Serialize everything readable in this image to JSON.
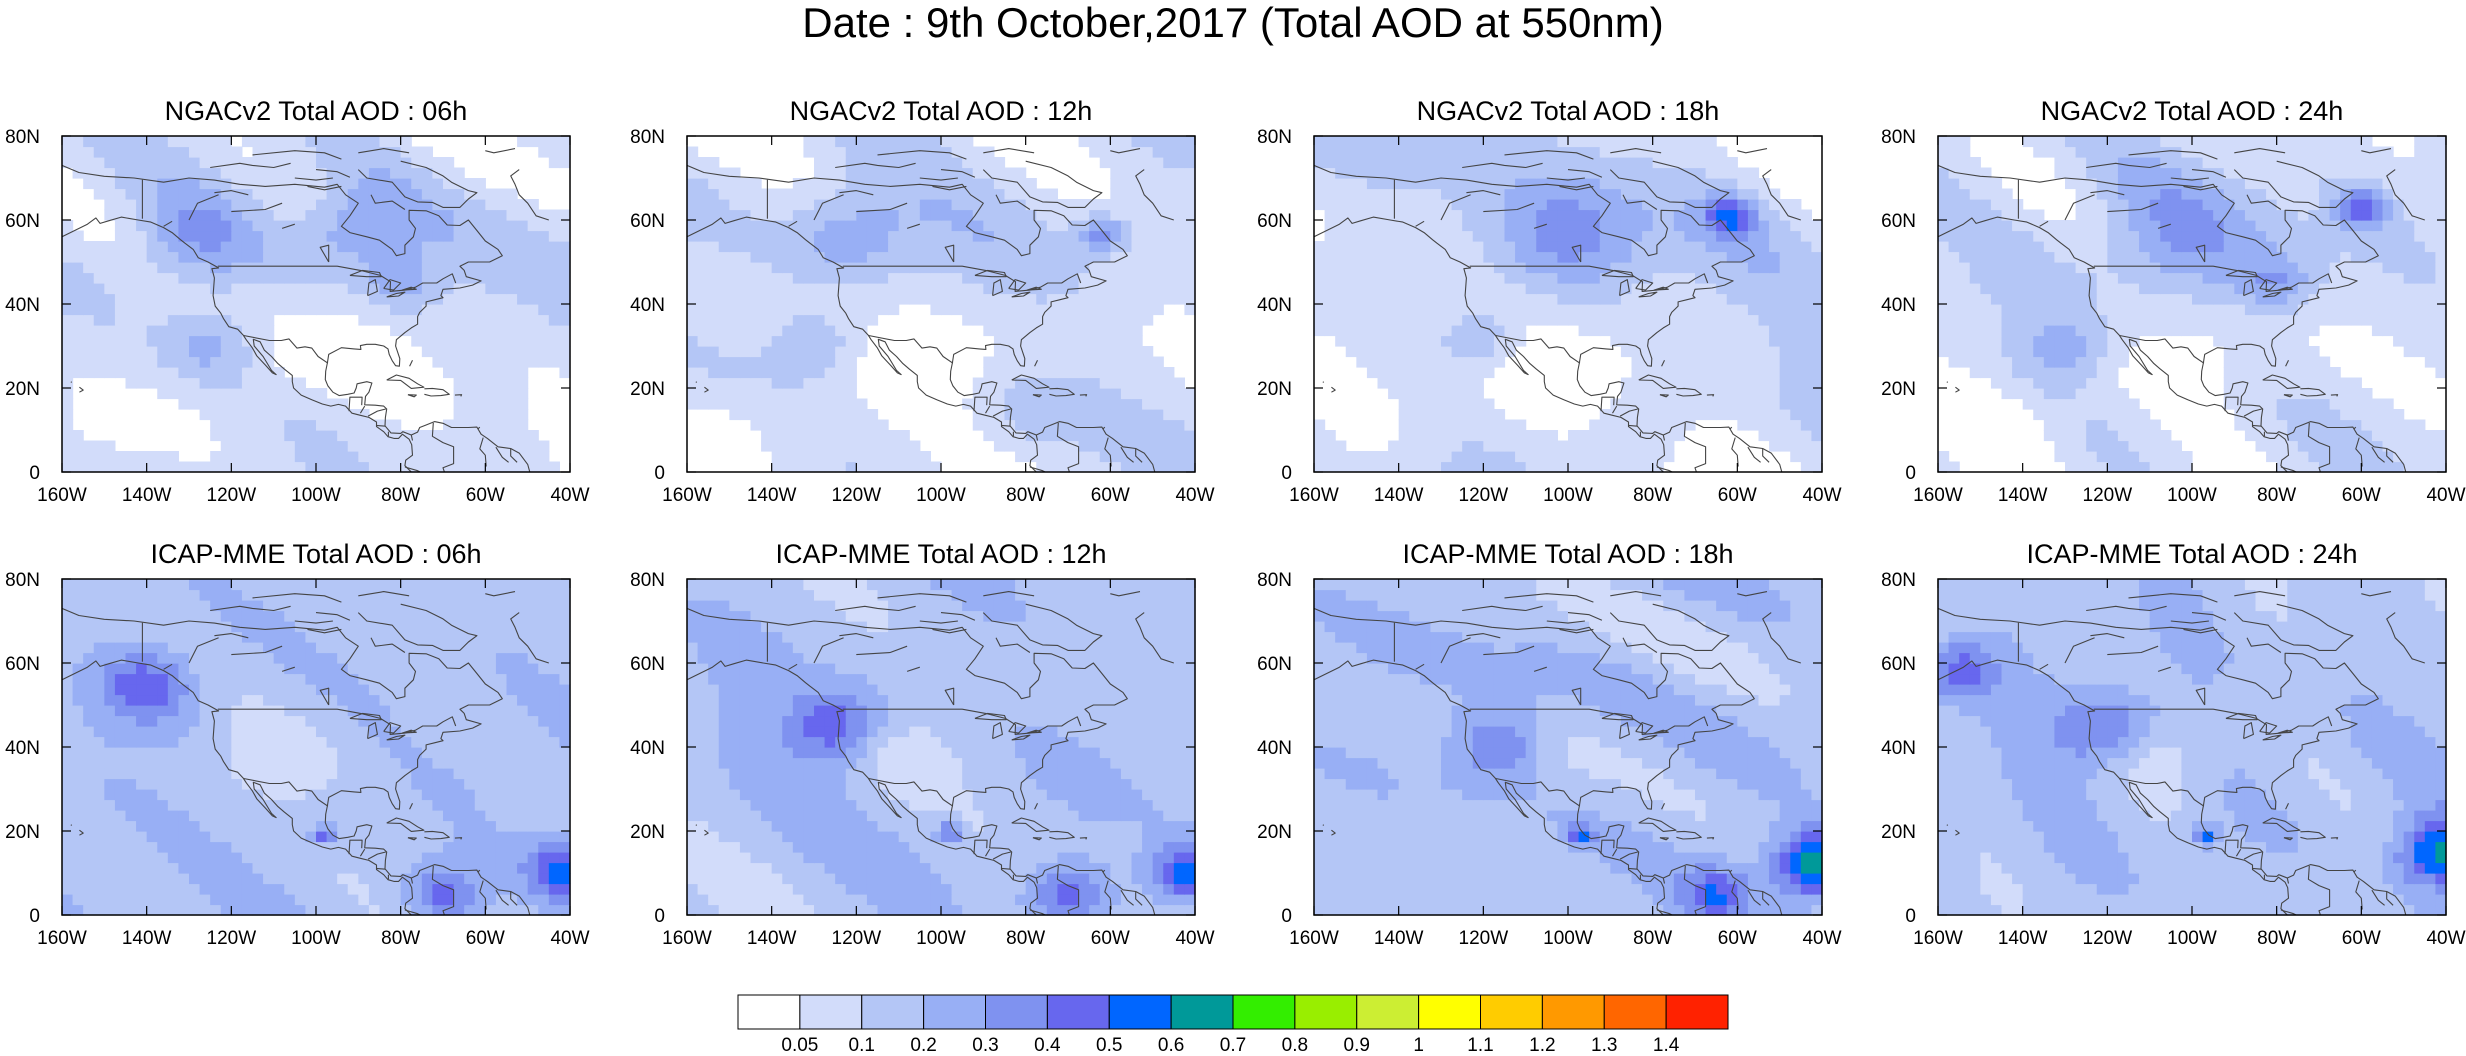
{
  "title": "Date : 9th October,2017 (Total AOD at 550nm)",
  "panels": [
    {
      "id": "ngac-06",
      "title": "NGACv2 Total AOD : 06h",
      "model": "NGAC",
      "base_level": 1,
      "hot": [
        [
          -130,
          55,
          2,
          10
        ],
        [
          -90,
          58,
          2,
          8
        ],
        [
          -125,
          30,
          2,
          8
        ],
        [
          -80,
          45,
          2,
          6
        ]
      ]
    },
    {
      "id": "ngac-12",
      "title": "NGACv2 Total AOD : 12h",
      "model": "NGAC",
      "base_level": 1,
      "hot": [
        [
          -122,
          56,
          2,
          10
        ],
        [
          -62,
          57,
          3,
          4
        ],
        [
          -130,
          30,
          2,
          7
        ],
        [
          -80,
          15,
          1,
          8
        ]
      ]
    },
    {
      "id": "ngac-18",
      "title": "NGACv2 Total AOD : 18h",
      "model": "NGAC",
      "base_level": 1,
      "hot": [
        [
          -100,
          56,
          2,
          12
        ],
        [
          -62,
          61,
          4,
          4
        ],
        [
          -120,
          32,
          2,
          7
        ],
        [
          -85,
          10,
          1,
          10
        ]
      ]
    },
    {
      "id": "ngac-24",
      "title": "NGACv2 Total AOD : 24h",
      "model": "NGAC",
      "base_level": 1,
      "hot": [
        [
          -105,
          55,
          2,
          14
        ],
        [
          -60,
          63,
          4,
          4
        ],
        [
          -130,
          30,
          2,
          7
        ],
        [
          -80,
          45,
          2,
          6
        ]
      ]
    },
    {
      "id": "icap-06",
      "title": "ICAP-MME Total AOD : 06h",
      "model": "ICAP",
      "base_level": 2,
      "hot": [
        [
          -42,
          10,
          4,
          6
        ],
        [
          -98,
          19,
          4,
          2
        ],
        [
          -140,
          55,
          3,
          8
        ],
        [
          -70,
          5,
          3,
          6
        ]
      ]
    },
    {
      "id": "icap-12",
      "title": "ICAP-MME Total AOD : 12h",
      "model": "ICAP",
      "base_level": 2,
      "hot": [
        [
          -42,
          10,
          4,
          6
        ],
        [
          -98,
          20,
          4,
          2
        ],
        [
          -125,
          45,
          3,
          8
        ],
        [
          -70,
          5,
          3,
          6
        ]
      ]
    },
    {
      "id": "icap-18",
      "title": "ICAP-MME Total AOD : 18h",
      "model": "ICAP",
      "base_level": 2,
      "hot": [
        [
          -42,
          12,
          5,
          7
        ],
        [
          -97,
          19,
          4,
          2
        ],
        [
          -115,
          40,
          3,
          8
        ],
        [
          -65,
          5,
          3,
          6
        ]
      ]
    },
    {
      "id": "icap-24",
      "title": "ICAP-MME Total AOD : 24h",
      "model": "ICAP",
      "base_level": 2,
      "hot": [
        [
          -41,
          15,
          5,
          7
        ],
        [
          -97,
          19,
          4,
          2
        ],
        [
          -155,
          58,
          3,
          6
        ],
        [
          -120,
          45,
          3,
          8
        ]
      ]
    }
  ],
  "axes": {
    "x_ticks": [
      "160W",
      "140W",
      "120W",
      "100W",
      "80W",
      "60W",
      "40W"
    ],
    "x_values": [
      -160,
      -140,
      -120,
      -100,
      -80,
      -60,
      -40
    ],
    "y_ticks": [
      "0",
      "20N",
      "40N",
      "60N",
      "80N"
    ],
    "y_values": [
      0,
      20,
      40,
      60,
      80
    ],
    "lon_range": [
      -160,
      -40
    ],
    "lat_range": [
      0,
      80
    ]
  },
  "colorbar": {
    "labels": [
      "0.05",
      "0.1",
      "0.2",
      "0.3",
      "0.4",
      "0.5",
      "0.6",
      "0.7",
      "0.8",
      "0.9",
      "1",
      "1.1",
      "1.2",
      "1.3",
      "1.4"
    ],
    "colors": [
      "#ffffff",
      "#d2dcfa",
      "#b4c6f6",
      "#98aff5",
      "#7f92f0",
      "#6767ee",
      "#0066ff",
      "#009999",
      "#33ee00",
      "#99ee00",
      "#ccee33",
      "#ffff00",
      "#ffcc00",
      "#ff9900",
      "#ff6600",
      "#ff2200"
    ]
  }
}
